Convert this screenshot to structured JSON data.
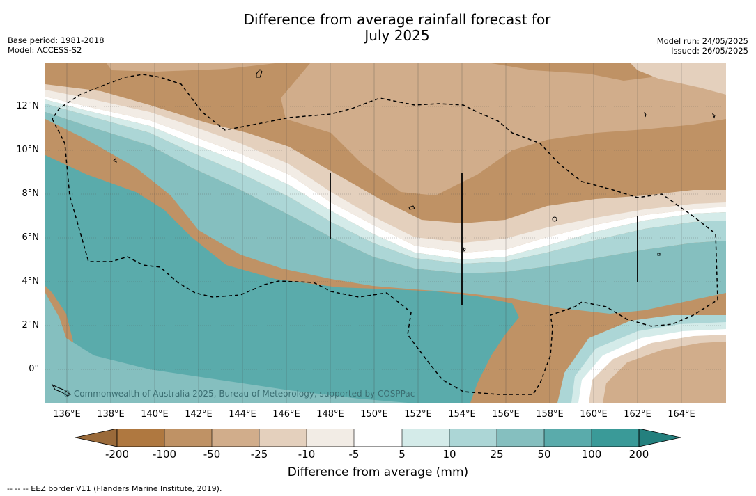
{
  "header": {
    "title_line1": "Difference from average rainfall forecast for",
    "title_line2": "July 2025",
    "base_period": "Base period: 1981-2018",
    "model": "Model: ACCESS-S2",
    "model_run": "Model run: 24/05/2025",
    "issued": "Issued: 26/05/2025"
  },
  "map": {
    "lon_labels": [
      "136°E",
      "138°E",
      "140°E",
      "142°E",
      "144°E",
      "146°E",
      "148°E",
      "150°E",
      "152°E",
      "154°E",
      "156°E",
      "158°E",
      "160°E",
      "162°E",
      "164°E"
    ],
    "lat_labels": [
      "12°N",
      "10°N",
      "8°N",
      "6°N",
      "4°N",
      "2°N",
      "0°"
    ],
    "copyright": "© Commonwealth of Australia 2025, Bureau of Meteorology, supported by COSPPac",
    "features": [
      "rainfall-difference-contours",
      "eez-border-dashed",
      "island-coastlines",
      "graticule"
    ]
  },
  "colorbar": {
    "title": "Difference from average (mm)",
    "labels": [
      "-200",
      "-100",
      "-50",
      "-25",
      "-10",
      "-5",
      "5",
      "10",
      "25",
      "50",
      "100",
      "200"
    ],
    "colors": [
      "#9a6a3a",
      "#af7840",
      "#bf9265",
      "#d1ad8b",
      "#e4d0bd",
      "#f2ece5",
      "#ffffff",
      "#d4ebe9",
      "#acd6d6",
      "#85bfbf",
      "#5aabab",
      "#3a9a98",
      "#24807e"
    ]
  },
  "footnote": "--  --  -- EEZ border V11 (Flanders Marine Institute, 2019)."
}
